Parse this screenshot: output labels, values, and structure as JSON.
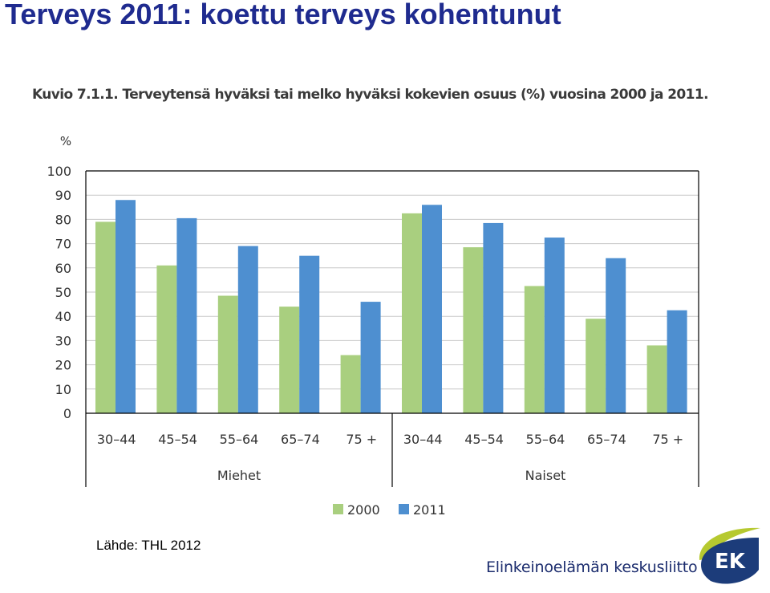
{
  "slide": {
    "title": "Terveys 2011: koettu terveys kohentunut",
    "source": "Lähde: THL 2012",
    "organization": "Elinkeinoelämän keskusliitto",
    "logo_text": "EK"
  },
  "chart_data": {
    "type": "bar",
    "title": "Kuvio 7.1.1. Terveytensä hyväksi tai melko hyväksi kokevien osuus (%) vuosina 2000 ja 2011.",
    "ylabel": "%",
    "ylim": [
      0,
      100
    ],
    "yticks": [
      0,
      10,
      20,
      30,
      40,
      50,
      60,
      70,
      80,
      90,
      100
    ],
    "grid": true,
    "legend_position": "bottom",
    "groups": [
      {
        "name": "Miehet",
        "categories": [
          "30–44",
          "45–54",
          "55–64",
          "65–74",
          "75 +"
        ]
      },
      {
        "name": "Naiset",
        "categories": [
          "30–44",
          "45–54",
          "55–64",
          "65–74",
          "75 +"
        ]
      }
    ],
    "series": [
      {
        "name": "2000",
        "color": "#a9cf7f",
        "values": [
          79,
          61,
          48.5,
          44,
          24,
          82.5,
          68.5,
          52.5,
          39,
          28
        ]
      },
      {
        "name": "2011",
        "color": "#4e8fd0",
        "values": [
          88,
          80.5,
          69,
          65,
          46,
          86,
          78.5,
          72.5,
          64,
          42.5
        ]
      }
    ]
  },
  "colors": {
    "title": "#1f2b8f",
    "gridline": "#c8c8c8",
    "axis": "#000000",
    "logo_green": "#b6c930",
    "logo_blue": "#1c3c7a"
  }
}
